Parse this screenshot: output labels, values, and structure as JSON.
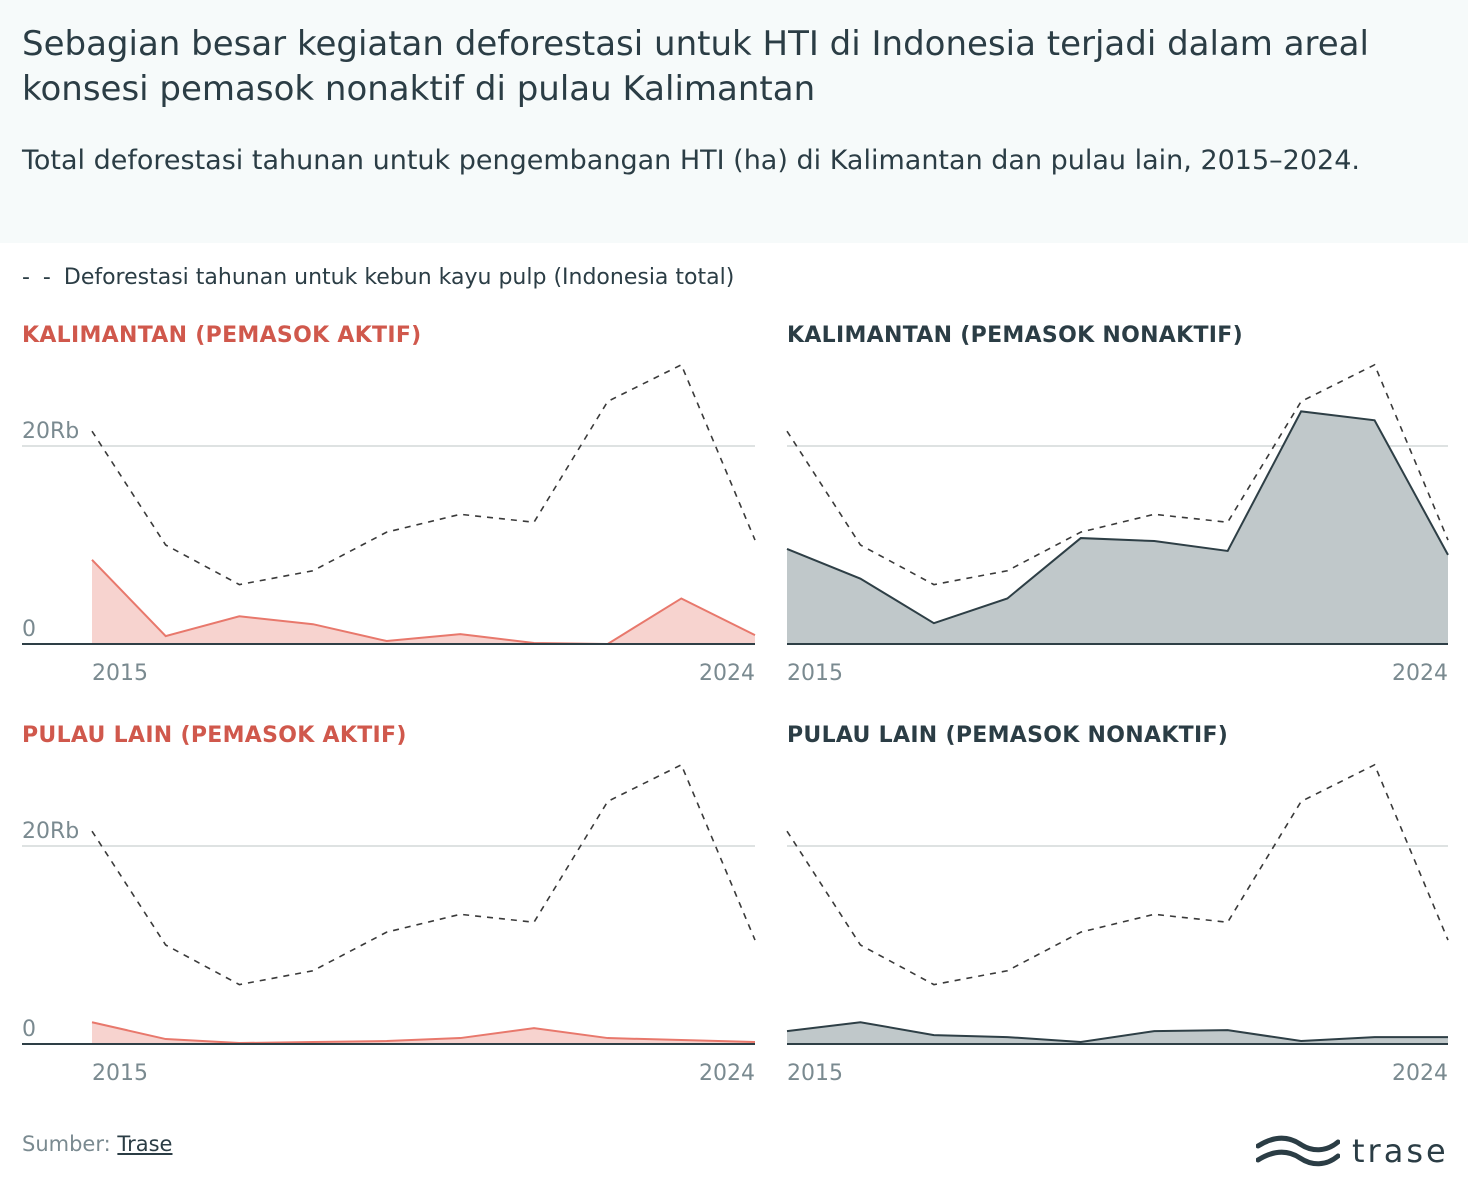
{
  "title": "Sebagian besar kegiatan deforestasi untuk HTI di Indonesia terjadi dalam areal konsesi pemasok nonaktif di pulau Kalimantan",
  "subtitle": "Total deforestasi tahunan untuk pengembangan HTI (ha) di Kalimantan dan pulau lain, 2015–2024.",
  "legend": {
    "swatch": "- -",
    "label": "Deforestasi tahunan untuk kebun kayu pulp (Indonesia total)"
  },
  "source": {
    "label": "Sumber:",
    "link": "Trase"
  },
  "logo_text": "trase",
  "colors": {
    "active_line": "#e8786c",
    "active_fill": "#f7d3cf",
    "active_title": "#d0584c",
    "inactive_line": "#2e3f46",
    "inactive_fill": "#c0c8ca",
    "dashed": "#3a3a3a",
    "grid": "#d4d8d9",
    "axis": "#2e3f46",
    "tick_text": "#7a8a90"
  },
  "chart_data": [
    {
      "type": "area",
      "title": "KALIMANTAN (PEMASOK AKTIF)",
      "style": "active",
      "x": [
        2015,
        2016,
        2017,
        2018,
        2019,
        2020,
        2021,
        2022,
        2023,
        2024
      ],
      "xtick_labels": [
        "2015",
        "2024"
      ],
      "ytick_labels": [
        "0",
        "20Rb"
      ],
      "ylim": [
        0,
        28500
      ],
      "series": [
        {
          "values": [
            8500,
            800,
            2800,
            2000,
            300,
            1000,
            100,
            0,
            4600,
            900
          ]
        },
        {
          "name": "Deforestasi tahunan untuk kebun kayu pulp (Indonesia total)",
          "values": [
            21500,
            10000,
            6000,
            7400,
            11300,
            13100,
            12300,
            24500,
            28200,
            10500
          ]
        }
      ]
    },
    {
      "type": "area",
      "title": "KALIMANTAN (PEMASOK NONAKTIF)",
      "style": "inactive",
      "x": [
        2015,
        2016,
        2017,
        2018,
        2019,
        2020,
        2021,
        2022,
        2023,
        2024
      ],
      "xtick_labels": [
        "2015",
        "2024"
      ],
      "ytick_labels": [
        "",
        ""
      ],
      "ylim": [
        0,
        28500
      ],
      "series": [
        {
          "values": [
            9600,
            6600,
            2100,
            4600,
            10700,
            10400,
            9400,
            23500,
            22600,
            9000
          ]
        },
        {
          "name": "Deforestasi tahunan untuk kebun kayu pulp (Indonesia total)",
          "values": [
            21500,
            10000,
            6000,
            7400,
            11300,
            13100,
            12300,
            24500,
            28200,
            10500
          ]
        }
      ]
    },
    {
      "type": "area",
      "title": "PULAU LAIN (PEMASOK AKTIF)",
      "style": "active",
      "x": [
        2015,
        2016,
        2017,
        2018,
        2019,
        2020,
        2021,
        2022,
        2023,
        2024
      ],
      "xtick_labels": [
        "2015",
        "2024"
      ],
      "ytick_labels": [
        "0",
        "20Rb"
      ],
      "ylim": [
        0,
        28500
      ],
      "series": [
        {
          "values": [
            2200,
            500,
            100,
            200,
            300,
            600,
            1600,
            600,
            400,
            200
          ]
        },
        {
          "name": "Deforestasi tahunan untuk kebun kayu pulp (Indonesia total)",
          "values": [
            21500,
            10000,
            6000,
            7400,
            11300,
            13100,
            12300,
            24500,
            28200,
            10500
          ]
        }
      ]
    },
    {
      "type": "area",
      "title": "PULAU LAIN (PEMASOK NONAKTIF)",
      "style": "inactive",
      "x": [
        2015,
        2016,
        2017,
        2018,
        2019,
        2020,
        2021,
        2022,
        2023,
        2024
      ],
      "xtick_labels": [
        "2015",
        "2024"
      ],
      "ytick_labels": [
        "",
        ""
      ],
      "ylim": [
        0,
        28500
      ],
      "series": [
        {
          "values": [
            1300,
            2200,
            900,
            700,
            200,
            1300,
            1400,
            300,
            700,
            700
          ]
        },
        {
          "name": "Deforestasi tahunan untuk kebun kayu pulp (Indonesia total)",
          "values": [
            21500,
            10000,
            6000,
            7400,
            11300,
            13100,
            12300,
            24500,
            28200,
            10500
          ]
        }
      ]
    }
  ]
}
